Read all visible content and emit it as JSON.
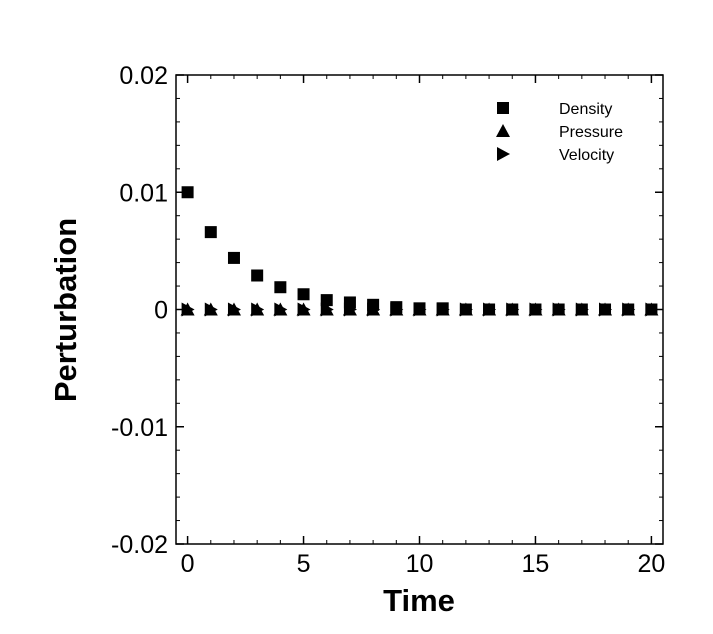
{
  "chart_data": {
    "type": "scatter",
    "title": "",
    "xlabel": "Time",
    "ylabel": "Perturbation",
    "xlim": [
      -0.5,
      20.5
    ],
    "ylim": [
      -0.02,
      0.02
    ],
    "xticks": [
      0,
      5,
      10,
      15,
      20
    ],
    "xtick_labels": [
      "0",
      "5",
      "10",
      "15",
      "20"
    ],
    "yticks": [
      -0.02,
      -0.01,
      0,
      0.01,
      0.02
    ],
    "ytick_labels": [
      "-0.02",
      "-0.01",
      "0",
      "0.01",
      "0.02"
    ],
    "grid": false,
    "legend_position": "top-right",
    "color": "#000000",
    "series": [
      {
        "name": "Density",
        "marker": "square",
        "x": [
          0,
          1,
          2,
          3,
          4,
          5,
          6,
          7,
          8,
          9,
          10,
          11,
          12,
          13,
          14,
          15,
          16,
          17,
          18,
          19,
          20
        ],
        "y": [
          0.01,
          0.0066,
          0.0044,
          0.0029,
          0.0019,
          0.0013,
          0.0008,
          0.0006,
          0.0004,
          0.0002,
          0.0001,
          0.0001,
          0.0,
          0.0,
          0.0,
          0.0,
          0.0,
          0.0,
          0.0,
          0.0,
          0.0
        ]
      },
      {
        "name": "Pressure",
        "marker": "triangle-up",
        "x": [
          0,
          1,
          2,
          3,
          4,
          5,
          6,
          7,
          8,
          9,
          10,
          11,
          12,
          13,
          14,
          15,
          16,
          17,
          18,
          19,
          20
        ],
        "y": [
          0,
          0,
          0,
          0,
          0,
          0,
          0,
          0,
          0,
          0,
          0,
          0,
          0,
          0,
          0,
          0,
          0,
          0,
          0,
          0,
          0
        ]
      },
      {
        "name": "Velocity",
        "marker": "triangle-right",
        "x": [
          0,
          1,
          2,
          3,
          4,
          5,
          6,
          7,
          8,
          9,
          10,
          11,
          12,
          13,
          14,
          15,
          16,
          17,
          18,
          19,
          20
        ],
        "y": [
          0,
          0,
          0,
          0,
          0,
          0,
          0,
          0,
          0,
          0,
          0,
          0,
          0,
          0,
          0,
          0,
          0,
          0,
          0,
          0,
          0
        ]
      }
    ]
  }
}
